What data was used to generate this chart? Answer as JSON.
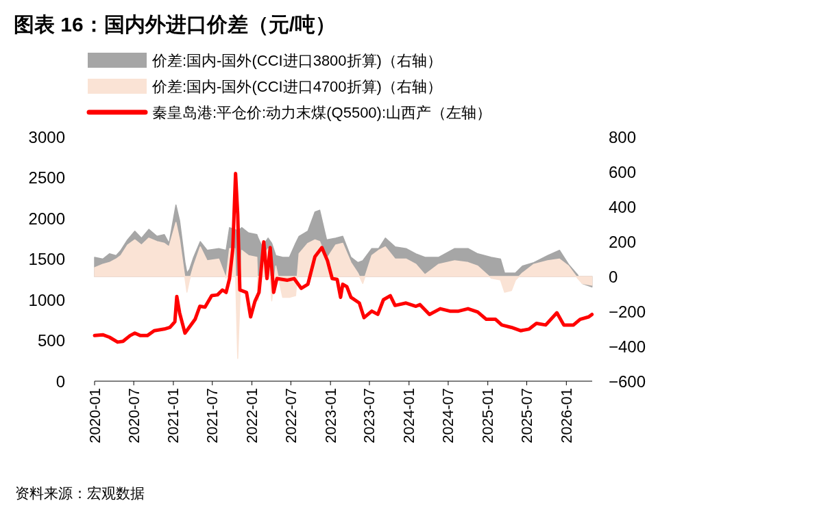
{
  "chart_data": {
    "type": "area",
    "title": "图表 16：国内外进口价差（元/吨）",
    "legend": "top",
    "grid": false,
    "xlim": [
      "2020-01-01",
      "2026-05-01"
    ],
    "xticks": [
      "2020-01",
      "2020-07",
      "2021-01",
      "2021-07",
      "2022-01",
      "2022-07",
      "2023-01",
      "2023-07",
      "2024-01",
      "2024-07",
      "2025-01",
      "2025-07",
      "2026-01"
    ],
    "ylim": [
      0,
      3000
    ],
    "yticks": [
      0,
      500,
      1000,
      1500,
      2000,
      2500,
      3000
    ],
    "y2lim": [
      -600,
      800
    ],
    "y2ticks": [
      -600,
      -400,
      -200,
      0,
      200,
      400,
      600,
      800
    ],
    "series": [
      {
        "name": "价差:国内-国外(CCI进口3800折算)（右轴）",
        "axis": "y2",
        "color": "#a6a6a6",
        "x": [
          "2020-01-01",
          "2020-02-08",
          "2020-03-10",
          "2020-04-10",
          "2020-05-02",
          "2020-06-02",
          "2020-07-06",
          "2020-08-06",
          "2020-09-09",
          "2020-10-17",
          "2020-11-20",
          "2020-12-12",
          "2021-01-13",
          "2021-01-30",
          "2021-02-24",
          "2021-03-05",
          "2021-03-17",
          "2021-04-05",
          "2021-05-06",
          "2021-06-07",
          "2021-07-31",
          "2021-09-03",
          "2021-09-19",
          "2021-10-14",
          "2021-10-27",
          "2021-11-15",
          "2021-12-16",
          "2022-01-24",
          "2022-01-30",
          "2022-02-18",
          "2022-03-17",
          "2022-04-03",
          "2022-04-22",
          "2022-05-24",
          "2022-06-24",
          "2022-07-23",
          "2022-08-08",
          "2022-09-18",
          "2022-10-21",
          "2022-11-12",
          "2022-12-14",
          "2023-01-25",
          "2023-02-27",
          "2023-04-06",
          "2023-05-08",
          "2023-05-31",
          "2023-07-12",
          "2023-08-13",
          "2023-09-13",
          "2023-10-28",
          "2023-12-18",
          "2024-02-02",
          "2024-03-15",
          "2024-05-18",
          "2024-07-31",
          "2024-10-01",
          "2024-11-15",
          "2025-01-17",
          "2025-03-01",
          "2025-03-20",
          "2025-04-21",
          "2025-05-10",
          "2025-06-11",
          "2025-08-03",
          "2025-10-06",
          "2025-11-30",
          "2026-01-11",
          "2026-02-22",
          "2026-03-16",
          "2026-04-30"
        ],
        "values": [
          110,
          100,
          130,
          120,
          150,
          210,
          260,
          220,
          270,
          230,
          240,
          190,
          410,
          320,
          80,
          20,
          40,
          110,
          200,
          150,
          160,
          150,
          280,
          270,
          260,
          280,
          250,
          240,
          220,
          170,
          220,
          190,
          120,
          110,
          110,
          190,
          230,
          260,
          370,
          380,
          210,
          220,
          230,
          110,
          80,
          90,
          160,
          160,
          220,
          170,
          160,
          130,
          110,
          110,
          160,
          160,
          130,
          110,
          100,
          20,
          20,
          20,
          60,
          80,
          120,
          150,
          70,
          10,
          -40,
          -60
        ]
      },
      {
        "name": "价差:国内-国外(CCI进口4700折算)（右轴）",
        "axis": "y2",
        "color": "#fae3d5",
        "x": [
          "2020-01-01",
          "2020-02-08",
          "2020-03-10",
          "2020-04-10",
          "2020-05-02",
          "2020-06-02",
          "2020-07-06",
          "2020-08-06",
          "2020-09-09",
          "2020-10-17",
          "2020-11-20",
          "2020-12-12",
          "2021-01-13",
          "2021-01-30",
          "2021-02-24",
          "2021-03-05",
          "2021-03-17",
          "2021-04-05",
          "2021-05-06",
          "2021-06-07",
          "2021-07-31",
          "2021-09-03",
          "2021-09-19",
          "2021-10-14",
          "2021-10-27",
          "2021-11-15",
          "2021-12-16",
          "2022-01-24",
          "2022-01-30",
          "2022-02-18",
          "2022-03-17",
          "2022-04-03",
          "2022-04-22",
          "2022-05-24",
          "2022-06-24",
          "2022-07-23",
          "2022-08-08",
          "2022-09-18",
          "2022-10-21",
          "2022-11-12",
          "2022-12-14",
          "2023-01-25",
          "2023-02-27",
          "2023-04-06",
          "2023-05-08",
          "2023-05-31",
          "2023-07-12",
          "2023-08-13",
          "2023-09-13",
          "2023-10-28",
          "2023-12-18",
          "2024-02-02",
          "2024-03-15",
          "2024-05-18",
          "2024-07-31",
          "2024-10-01",
          "2024-11-15",
          "2025-01-17",
          "2025-03-01",
          "2025-03-20",
          "2025-04-21",
          "2025-05-10",
          "2025-06-11",
          "2025-08-03",
          "2025-10-06",
          "2025-11-30",
          "2026-01-11",
          "2026-02-22",
          "2026-03-16",
          "2026-04-30"
        ],
        "values": [
          50,
          70,
          80,
          100,
          120,
          180,
          210,
          180,
          220,
          200,
          190,
          170,
          310,
          210,
          -10,
          -90,
          -20,
          60,
          170,
          90,
          100,
          -10,
          160,
          160,
          -470,
          150,
          120,
          110,
          -140,
          110,
          160,
          -140,
          60,
          -120,
          -120,
          -110,
          130,
          190,
          210,
          200,
          100,
          180,
          190,
          80,
          20,
          -40,
          120,
          150,
          170,
          100,
          100,
          70,
          10,
          70,
          90,
          80,
          60,
          -10,
          -20,
          -90,
          -80,
          -20,
          20,
          70,
          90,
          100,
          60,
          -10,
          -40,
          -50
        ]
      },
      {
        "name": "秦皇岛港:平仓价:动力末煤(Q5500):山西产（左轴）",
        "type": "line",
        "color": "#ff0000",
        "x": [
          "2020-01-01",
          "2020-02-08",
          "2020-03-10",
          "2020-04-17",
          "2020-05-12",
          "2020-06-14",
          "2020-07-06",
          "2020-08-01",
          "2020-09-02",
          "2020-10-04",
          "2020-11-20",
          "2020-12-16",
          "2021-01-08",
          "2021-01-17",
          "2021-01-30",
          "2021-02-24",
          "2021-03-10",
          "2021-04-12",
          "2021-05-04",
          "2021-05-28",
          "2021-06-28",
          "2021-07-25",
          "2021-08-17",
          "2021-09-03",
          "2021-09-19",
          "2021-10-04",
          "2021-10-17",
          "2021-10-27",
          "2021-11-06",
          "2021-12-07",
          "2021-12-26",
          "2022-01-15",
          "2022-02-03",
          "2022-02-25",
          "2022-03-12",
          "2022-03-27",
          "2022-04-12",
          "2022-04-27",
          "2022-06-15",
          "2022-07-16",
          "2022-08-18",
          "2022-09-18",
          "2022-10-21",
          "2022-11-22",
          "2022-12-18",
          "2023-01-09",
          "2023-02-01",
          "2023-02-17",
          "2023-02-27",
          "2023-03-18",
          "2023-04-06",
          "2023-05-15",
          "2023-06-06",
          "2023-07-12",
          "2023-08-09",
          "2023-09-04",
          "2023-10-06",
          "2023-10-28",
          "2023-12-18",
          "2024-02-02",
          "2024-02-21",
          "2024-04-05",
          "2024-05-25",
          "2024-07-09",
          "2024-08-18",
          "2024-10-01",
          "2024-11-15",
          "2024-12-25",
          "2025-02-06",
          "2025-03-07",
          "2025-04-21",
          "2025-06-02",
          "2025-07-12",
          "2025-08-15",
          "2025-09-27",
          "2025-11-18",
          "2025-12-20",
          "2026-02-03",
          "2026-03-06",
          "2026-04-15",
          "2026-04-30"
        ],
        "values": [
          560,
          570,
          540,
          480,
          490,
          560,
          590,
          560,
          560,
          620,
          640,
          660,
          730,
          1040,
          840,
          590,
          640,
          760,
          920,
          910,
          1050,
          1060,
          1120,
          1090,
          1260,
          1620,
          2550,
          2050,
          1120,
          1090,
          790,
          980,
          1090,
          1710,
          1260,
          1640,
          1090,
          1260,
          1240,
          1260,
          1140,
          1190,
          1530,
          1640,
          1480,
          1260,
          1250,
          1030,
          1190,
          1160,
          1030,
          960,
          780,
          860,
          820,
          1000,
          1050,
          930,
          960,
          920,
          940,
          820,
          890,
          860,
          860,
          890,
          850,
          760,
          760,
          690,
          660,
          620,
          640,
          710,
          690,
          840,
          690,
          690,
          760,
          790,
          820
        ]
      }
    ],
    "annotations": [
      "资料来源：宏观数据"
    ]
  }
}
